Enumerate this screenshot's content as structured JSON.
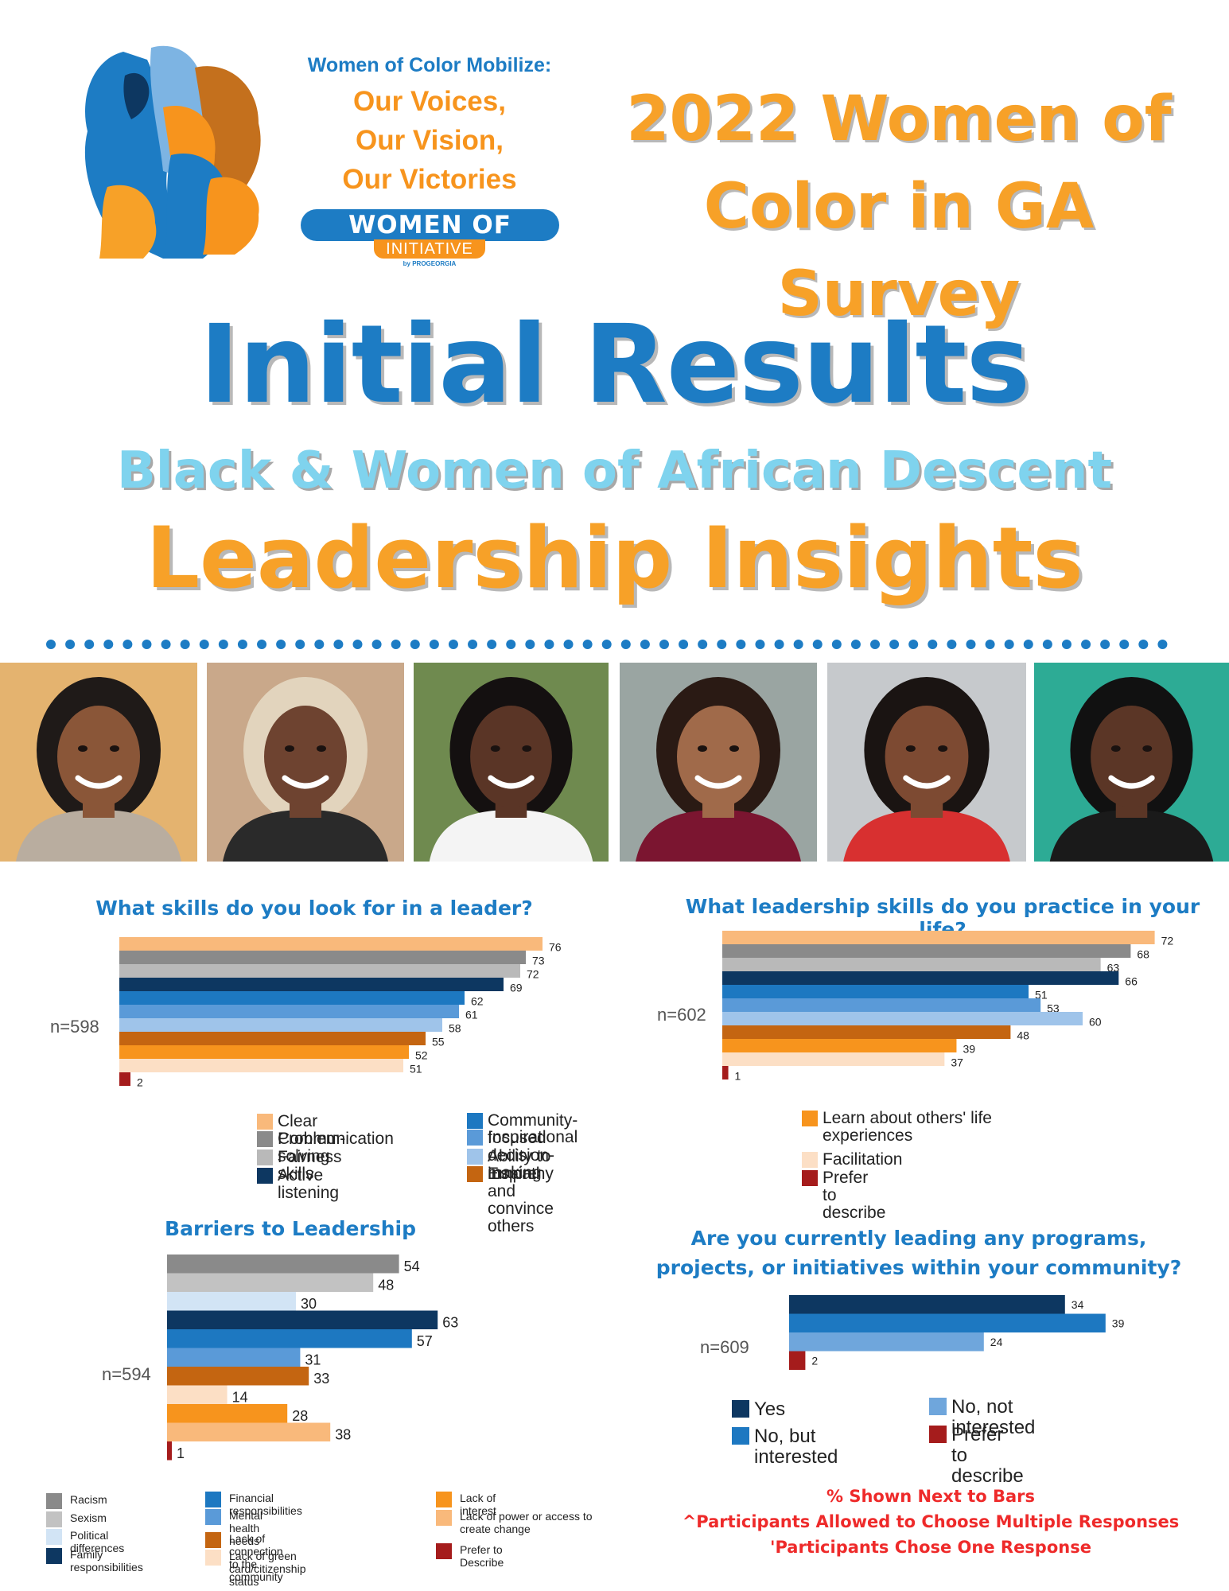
{
  "header": {
    "tagline_line1": "Women of Color Mobilize:",
    "tagline_line2": "Our Voices,",
    "tagline_line3": "Our Vision,",
    "tagline_line4": "Our Victories",
    "badge_main": "WOMEN OF COLOR",
    "badge_sub": "INITIATIVE",
    "badge_by": "by PROGEORGIA",
    "survey_title_line1": "2022 Women of",
    "survey_title_line2": "Color in GA Survey"
  },
  "titles": {
    "main": "Initial Results",
    "subtitle": "Black & Women of African Descent",
    "lead": "Leadership Insights"
  },
  "colors": {
    "blue": "#1d7cc4",
    "orange": "#f7941d",
    "light_blue": "#7fd3ee",
    "red_note": "#ee2a2a"
  },
  "photos": [
    {
      "bg": "#e4b36f",
      "skin": "#8a5638",
      "hair": "#1f1a18",
      "top": "#b9ad9f"
    },
    {
      "bg": "#c9a88a",
      "skin": "#6e4330",
      "hair": "#e2d4bd",
      "top": "#2a2a2a"
    },
    {
      "bg": "#6f8a4f",
      "skin": "#5a3526",
      "hair": "#141010",
      "top": "#f4f4f4"
    },
    {
      "bg": "#9aa5a2",
      "skin": "#a06a4a",
      "hair": "#2a1a14",
      "top": "#7b1530"
    },
    {
      "bg": "#c6c9cc",
      "skin": "#7d4a32",
      "hair": "#1a1412",
      "top": "#d83030"
    },
    {
      "bg": "#2dab95",
      "skin": "#5b3626",
      "hair": "#111111",
      "top": "#1a1a1a"
    }
  ],
  "chart_data": [
    {
      "id": "skills_look_for",
      "type": "bar",
      "orientation": "horizontal",
      "title": "What skills do you look for in a leader?",
      "n_label": "n=598",
      "categories": [
        "Clear Communication",
        "Problem-solving skills",
        "Fairness",
        "Active listening",
        "Community-focused decision-making",
        "Inspirational",
        "Ability to inspire and convince others",
        "Empathy",
        "Learn about others' life experiences",
        "Facilitation",
        "Prefer to describe"
      ],
      "values": [
        76,
        73,
        72,
        69,
        62,
        61,
        58,
        55,
        52,
        51,
        2
      ],
      "colors": [
        "#f9b97b",
        "#8a8a8a",
        "#b9b9b9",
        "#0d3761",
        "#1d78c1",
        "#5a9ad8",
        "#9fc4ea",
        "#c46511",
        "#f7941d",
        "#fcdfc5",
        "#a51c1c"
      ],
      "xlim": [
        0,
        100
      ]
    },
    {
      "id": "skills_practice",
      "type": "bar",
      "orientation": "horizontal",
      "title": "What leadership skills do you practice in your life?",
      "n_label": "n=602",
      "categories": [
        "Clear Communication",
        "Problem-solving skills",
        "Fairness",
        "Active listening",
        "Community-focused decision-making",
        "Inspirational",
        "Ability to inspire and convince others",
        "Empathy",
        "Learn about others' life experiences",
        "Facilitation",
        "Prefer to describe"
      ],
      "values": [
        72,
        68,
        63,
        66,
        51,
        53,
        60,
        48,
        39,
        37,
        1
      ],
      "colors": [
        "#f9b97b",
        "#8a8a8a",
        "#b9b9b9",
        "#0d3761",
        "#1d78c1",
        "#5a9ad8",
        "#9fc4ea",
        "#c46511",
        "#f7941d",
        "#fcdfc5",
        "#a51c1c"
      ],
      "xlim": [
        0,
        100
      ]
    },
    {
      "id": "barriers",
      "type": "bar",
      "orientation": "horizontal",
      "title": "Barriers to Leadership",
      "n_label": "n=594",
      "categories": [
        "Racism",
        "Sexism",
        "Political differences",
        "Family responsibilities",
        "Financial responsibilities",
        "Mental health needs",
        "Lack of connection to the community",
        "Lack of green card/citizenship status",
        "Lack of interest",
        "Lack of power or access to create change",
        "Prefer to Describe"
      ],
      "values": [
        54,
        48,
        30,
        63,
        57,
        31,
        33,
        14,
        28,
        38,
        1
      ],
      "colors": [
        "#8a8a8a",
        "#c2c2c2",
        "#d2e4f5",
        "#0d3761",
        "#1d78c1",
        "#5a9ad8",
        "#c46511",
        "#fcdfc5",
        "#f7941d",
        "#f9b97b",
        "#a51c1c"
      ],
      "xlim": [
        0,
        100
      ]
    },
    {
      "id": "currently_leading",
      "type": "bar",
      "orientation": "horizontal",
      "title": "Are you currently leading any programs, projects, or initiatives within your community?",
      "n_label": "n=609",
      "categories": [
        "Yes",
        "No, but interested",
        "No, not interested",
        "Prefer to describe"
      ],
      "values": [
        34,
        39,
        24,
        2
      ],
      "colors": [
        "#0d3761",
        "#1d78c1",
        "#6fa6dc",
        "#a51c1c"
      ],
      "xlim": [
        0,
        100
      ]
    }
  ],
  "legends": {
    "skills": [
      {
        "label": "Clear Communication",
        "color": "#f9b97b"
      },
      {
        "label": "Problem-solving skills",
        "color": "#8a8a8a"
      },
      {
        "label": "Fairness",
        "color": "#b9b9b9"
      },
      {
        "label": "Active listening",
        "color": "#0d3761"
      },
      {
        "label": "Community-focused decision-making",
        "color": "#1d78c1"
      },
      {
        "label": "Inspirational",
        "color": "#5a9ad8"
      },
      {
        "label": "Ability to inspire and convince others",
        "color": "#9fc4ea"
      },
      {
        "label": "Empathy",
        "color": "#c46511"
      },
      {
        "label": "Learn about others' life experiences",
        "color": "#f7941d"
      },
      {
        "label": "Facilitation",
        "color": "#fcdfc5"
      },
      {
        "label": "Prefer to describe",
        "color": "#a51c1c"
      }
    ],
    "barriers": [
      {
        "label": "Racism",
        "color": "#8a8a8a"
      },
      {
        "label": "Sexism",
        "color": "#c2c2c2"
      },
      {
        "label": "Political differences",
        "color": "#d2e4f5"
      },
      {
        "label": "Family responsibilities",
        "color": "#0d3761"
      },
      {
        "label": "Financial responsibilities",
        "color": "#1d78c1"
      },
      {
        "label": "Mental health needs",
        "color": "#5a9ad8"
      },
      {
        "label": "Lack of connection to the community",
        "color": "#c46511"
      },
      {
        "label": "Lack of green card/citizenship status",
        "color": "#fcdfc5"
      },
      {
        "label": "Lack of interest",
        "color": "#f7941d"
      },
      {
        "label": "Lack of power or access to create change",
        "color": "#f9b97b"
      },
      {
        "label": "Prefer to Describe",
        "color": "#a51c1c"
      }
    ],
    "leading": [
      {
        "label": "Yes",
        "color": "#0d3761"
      },
      {
        "label": "No, but interested",
        "color": "#1d78c1"
      },
      {
        "label": "No, not interested",
        "color": "#6fa6dc"
      },
      {
        "label": "Prefer to describe",
        "color": "#a51c1c"
      }
    ]
  },
  "footnotes": {
    "line1": "% Shown Next to Bars",
    "line2": "^Participants Allowed to Choose Multiple Responses",
    "line3": "'Participants Chose One Response"
  }
}
